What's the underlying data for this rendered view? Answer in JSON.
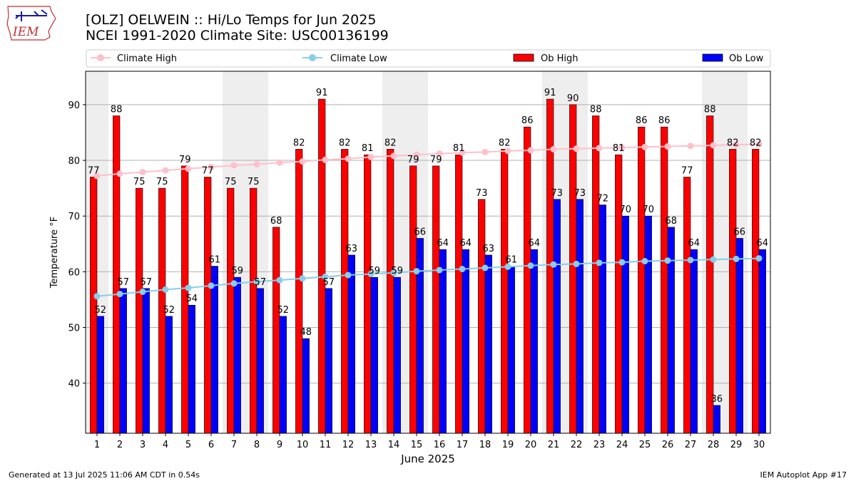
{
  "logo": {
    "text": "IEM"
  },
  "header": {
    "title_line1": "[OLZ] OELWEIN :: Hi/Lo Temps for Jun 2025",
    "title_line2": "NCEI 1991-2020 Climate Site: USC00136199"
  },
  "footer": {
    "generated": "Generated at 13 Jul 2025 11:06 AM CDT in 0.54s",
    "app": "IEM Autoplot App #17"
  },
  "colors": {
    "ob_high": "#ff0000",
    "ob_low": "#0000ff",
    "climate_high": "#ffc0cb",
    "climate_low": "#87ceeb",
    "weekend_band": "#eeeeee",
    "grid": "#b0b0b0"
  },
  "chart_data": {
    "type": "bar",
    "title": "[OLZ] OELWEIN :: Hi/Lo Temps for Jun 2025",
    "xlabel": "June 2025",
    "ylabel": "Temperature °F",
    "ylim": [
      31,
      96
    ],
    "yticks": [
      40,
      50,
      60,
      70,
      80,
      90
    ],
    "grid": true,
    "legend_position": "top",
    "weekend_days": [
      1,
      7,
      8,
      14,
      15,
      21,
      22,
      28,
      29
    ],
    "categories": [
      "1",
      "2",
      "3",
      "4",
      "5",
      "6",
      "7",
      "8",
      "9",
      "10",
      "11",
      "12",
      "13",
      "14",
      "15",
      "16",
      "17",
      "18",
      "19",
      "20",
      "21",
      "22",
      "23",
      "24",
      "25",
      "26",
      "27",
      "28",
      "29",
      "30"
    ],
    "series": [
      {
        "name": "Ob High",
        "kind": "bar",
        "values": [
          77,
          88,
          75,
          75,
          79,
          77,
          75,
          75,
          68,
          82,
          91,
          82,
          81,
          82,
          79,
          79,
          81,
          73,
          82,
          86,
          91,
          90,
          88,
          81,
          86,
          86,
          77,
          88,
          82,
          82
        ]
      },
      {
        "name": "Ob Low",
        "kind": "bar",
        "values": [
          52,
          57,
          57,
          52,
          54,
          61,
          59,
          57,
          52,
          48,
          57,
          63,
          59,
          59,
          66,
          64,
          64,
          63,
          61,
          64,
          73,
          73,
          72,
          70,
          70,
          68,
          64,
          36,
          66,
          64
        ]
      },
      {
        "name": "Climate High",
        "kind": "line",
        "values": [
          77.2,
          77.6,
          77.9,
          78.2,
          78.5,
          78.8,
          79.1,
          79.3,
          79.6,
          79.8,
          80.1,
          80.3,
          80.6,
          80.8,
          81.0,
          81.2,
          81.4,
          81.5,
          81.7,
          81.8,
          82.0,
          82.1,
          82.2,
          82.3,
          82.4,
          82.5,
          82.6,
          82.7,
          82.8,
          82.9
        ]
      },
      {
        "name": "Climate Low",
        "kind": "line",
        "values": [
          55.6,
          56.0,
          56.4,
          56.8,
          57.1,
          57.5,
          57.9,
          58.2,
          58.5,
          58.8,
          59.1,
          59.4,
          59.6,
          59.8,
          60.1,
          60.3,
          60.5,
          60.7,
          60.9,
          61.1,
          61.3,
          61.4,
          61.6,
          61.7,
          61.9,
          62.0,
          62.1,
          62.2,
          62.3,
          62.4
        ]
      }
    ]
  }
}
